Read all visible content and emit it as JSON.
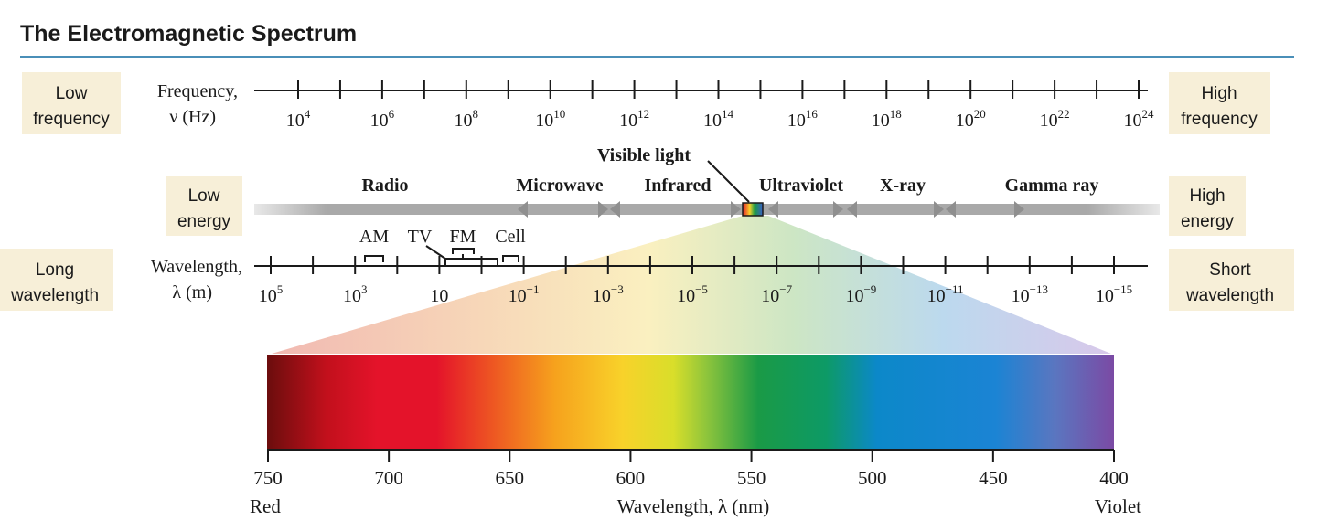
{
  "title": "The Electromagnetic Spectrum",
  "colors": {
    "title_rule": "#4a8fb8",
    "side_box": "#f7efd8",
    "band_gray": "#a9a9a9",
    "axis": "#1a1a1a"
  },
  "side_labels": {
    "low_frequency": [
      "Low",
      "frequency"
    ],
    "high_frequency": [
      "High",
      "frequency"
    ],
    "low_energy": [
      "Low",
      "energy"
    ],
    "high_energy": [
      "High",
      "energy"
    ],
    "long_wavelength": [
      "Long",
      "wavelength"
    ],
    "short_wavelength": [
      "Short",
      "wavelength"
    ]
  },
  "frequency_axis": {
    "label": [
      "Frequency,",
      "ν (Hz)"
    ],
    "ticks": [
      {
        "base": "10",
        "exp": "4"
      },
      {
        "base": "10",
        "exp": "6"
      },
      {
        "base": "10",
        "exp": "8"
      },
      {
        "base": "10",
        "exp": "10"
      },
      {
        "base": "10",
        "exp": "12"
      },
      {
        "base": "10",
        "exp": "14"
      },
      {
        "base": "10",
        "exp": "16"
      },
      {
        "base": "10",
        "exp": "18"
      },
      {
        "base": "10",
        "exp": "20"
      },
      {
        "base": "10",
        "exp": "22"
      },
      {
        "base": "10",
        "exp": "24"
      }
    ]
  },
  "bands": [
    "Radio",
    "Microwave",
    "Infrared",
    "Ultraviolet",
    "X-ray",
    "Gamma ray"
  ],
  "visible_light_label": "Visible light",
  "radio_sub_bands": [
    "AM",
    "TV",
    "FM",
    "Cell"
  ],
  "wavelength_axis": {
    "label": [
      "Wavelength,",
      "λ (m)"
    ],
    "ticks": [
      {
        "base": "10",
        "exp": "5"
      },
      {
        "base": "10",
        "exp": "3"
      },
      {
        "base": "10",
        "exp": ""
      },
      {
        "base": "10",
        "exp": "−1"
      },
      {
        "base": "10",
        "exp": "−3"
      },
      {
        "base": "10",
        "exp": "−5"
      },
      {
        "base": "10",
        "exp": "−7"
      },
      {
        "base": "10",
        "exp": "−9"
      },
      {
        "base": "10",
        "exp": "−11"
      },
      {
        "base": "10",
        "exp": "−13"
      },
      {
        "base": "10",
        "exp": "−15"
      }
    ]
  },
  "visible_spectrum": {
    "ticks": [
      "750",
      "700",
      "650",
      "600",
      "550",
      "500",
      "450",
      "400"
    ],
    "left_label": "Red",
    "right_label": "Violet",
    "axis_label": "Wavelength, λ (nm)"
  }
}
